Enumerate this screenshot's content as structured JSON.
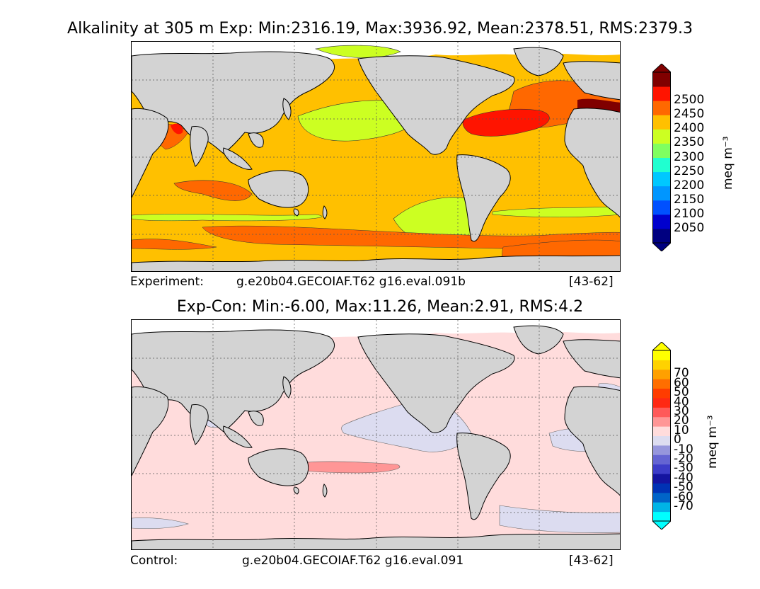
{
  "top": {
    "title": "Alkalinity at 305 m Exp: Min:2316.19, Max:3936.92, Mean:2378.51, RMS:2379.3",
    "caption_label": "Experiment:",
    "caption_case": "g.e20b04.GECOIAF.T62 g16.eval.091b",
    "caption_years": "[43-62]",
    "units": "meq m⁻³",
    "colorbar": {
      "colors": [
        "#000080",
        "#0000cd",
        "#0050ff",
        "#0096ff",
        "#00c8ff",
        "#20ffd0",
        "#80ff60",
        "#ccff22",
        "#ffc000",
        "#ff6800",
        "#ff1400",
        "#800000"
      ],
      "labels": [
        "2050",
        "2100",
        "2150",
        "2200",
        "2250",
        "2300",
        "2350",
        "2400",
        "2450",
        "2500"
      ]
    }
  },
  "bottom": {
    "title": "Exp-Con: Min:-6.00, Max:11.26, Mean:2.91, RMS:4.2",
    "caption_label": "Control:",
    "caption_case": "g.e20b04.GECOIAF.T62 g16.eval.091",
    "caption_years": "[43-62]",
    "units": "meq m⁻³",
    "colorbar": {
      "colors": [
        "#00ffff",
        "#00b4e6",
        "#0064c8",
        "#0032b4",
        "#1414a0",
        "#3c3cc8",
        "#6464d2",
        "#9696dc",
        "#dcdcf0",
        "#ffdcdc",
        "#ff9696",
        "#ff5a5a",
        "#ff2814",
        "#ff3c00",
        "#ff6e00",
        "#ffa000",
        "#ffd200",
        "#ffff00"
      ],
      "labels": [
        "-70",
        "-60",
        "-50",
        "-40",
        "-30",
        "-20",
        "-10",
        "0",
        "10",
        "20",
        "30",
        "40",
        "50",
        "60",
        "70"
      ]
    }
  }
}
